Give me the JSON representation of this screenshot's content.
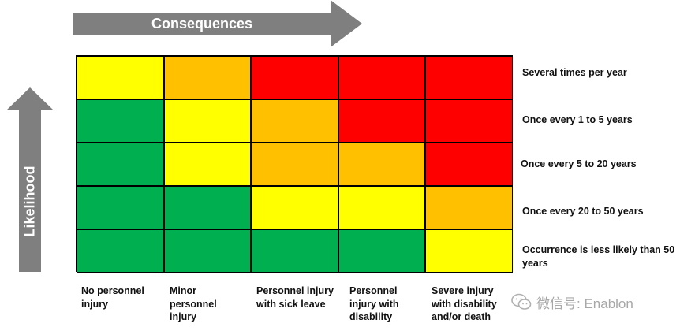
{
  "consequences_label": "Consequences",
  "likelihood_label": "Likelihood",
  "likelihood_levels": [
    "Several times per year",
    "Once every 1 to 5  years",
    "Once every 5  to 20 years",
    "Once every 20 to 50 years",
    "Occurrence is less likely than 50 years"
  ],
  "consequence_levels": [
    "No personnel injury",
    "Minor personnel injury",
    "Personnel injury with sick leave",
    "Personnel injury with disability",
    "Severe injury with disability and/or death"
  ],
  "matrix": [
    [
      "yellow",
      "orange",
      "red",
      "red",
      "red"
    ],
    [
      "green",
      "yellow",
      "orange",
      "red",
      "red"
    ],
    [
      "green",
      "yellow",
      "orange",
      "orange",
      "red"
    ],
    [
      "green",
      "green",
      "yellow",
      "yellow",
      "orange"
    ],
    [
      "green",
      "green",
      "green",
      "green",
      "yellow"
    ]
  ],
  "colors": {
    "green": "#00b050",
    "yellow": "#ffff00",
    "orange": "#ffc000",
    "red": "#ff0000",
    "arrow": "#7f7f7f"
  },
  "watermark": "微信号: Enablon"
}
